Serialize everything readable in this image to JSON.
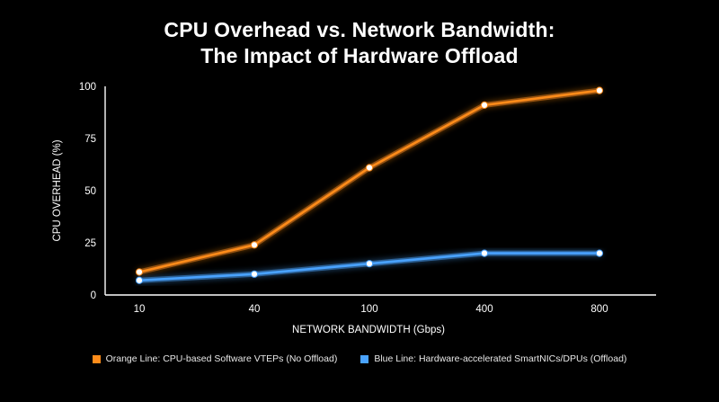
{
  "chart_data": {
    "type": "line",
    "title_line1": "CPU Overhead vs. Network Bandwidth:",
    "title_line2": "The Impact of Hardware Offload",
    "xlabel": "NETWORK BANDWIDTH (Gbps)",
    "ylabel": "CPU OVERHEAD (%)",
    "categories": [
      "10",
      "40",
      "100",
      "400",
      "800"
    ],
    "yticks": [
      "0",
      "25",
      "50",
      "75",
      "100"
    ],
    "ylim": [
      0,
      100
    ],
    "grid": false,
    "legend_position": "bottom",
    "series": [
      {
        "name": "Orange Line: CPU-based Software VTEPs (No Offload)",
        "color": "#ff8c1a",
        "values": [
          11,
          24,
          61,
          91,
          98
        ]
      },
      {
        "name": "Blue Line: Hardware-accelerated SmartNICs/DPUs (Offload)",
        "color": "#4aa3ff",
        "values": [
          7,
          10,
          15,
          20,
          20
        ]
      }
    ]
  }
}
